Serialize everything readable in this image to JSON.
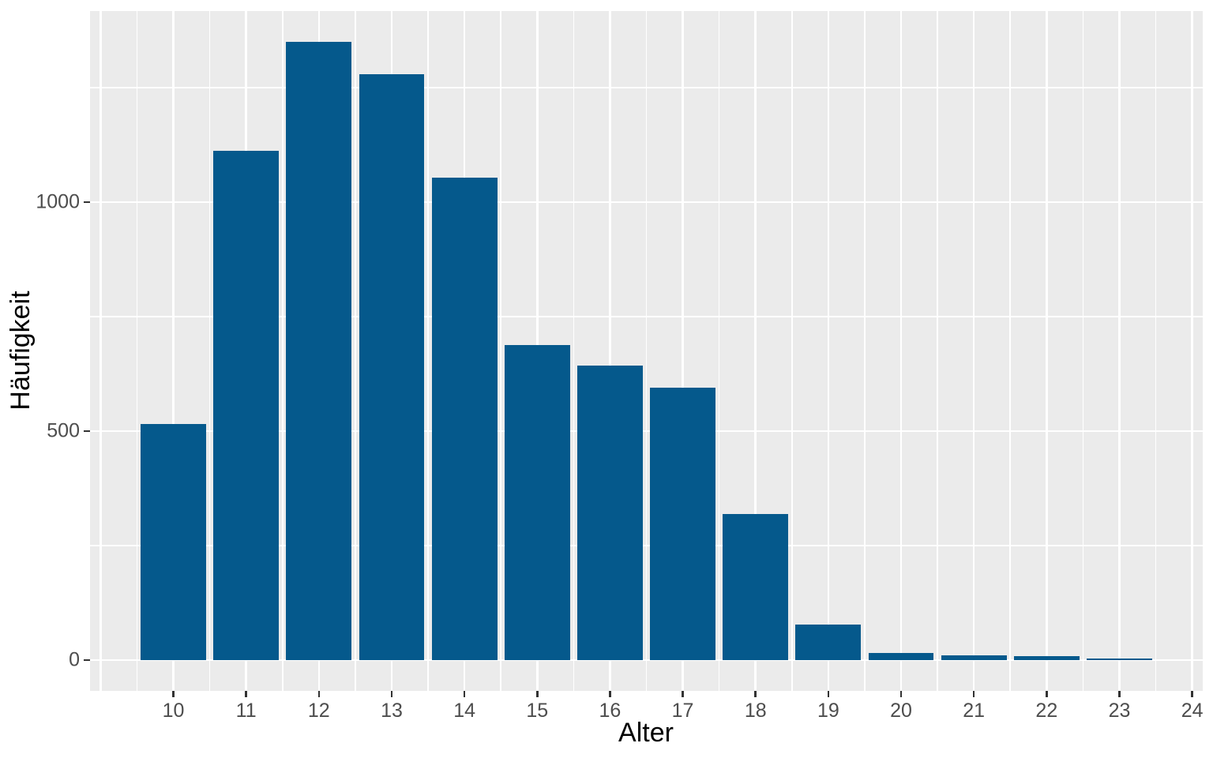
{
  "chart_data": {
    "type": "bar",
    "title": "",
    "xlabel": "Alter",
    "ylabel": "Häufigkeit",
    "categories": [
      10,
      11,
      12,
      13,
      14,
      15,
      16,
      17,
      18,
      19,
      20,
      21,
      22,
      23
    ],
    "values": [
      516,
      1113,
      1350,
      1280,
      1054,
      688,
      643,
      595,
      319,
      77,
      16,
      10,
      8,
      3
    ],
    "bar_width": 0.9,
    "x_ticks": [
      10,
      11,
      12,
      13,
      14,
      15,
      16,
      17,
      18,
      19,
      20,
      21,
      22,
      23,
      24
    ],
    "x_major_gridlines": [
      9,
      10,
      11,
      12,
      13,
      14,
      15,
      16,
      17,
      18,
      19,
      20,
      21,
      22,
      23,
      24
    ],
    "x_minor_gridlines": [
      9.5,
      10.5,
      11.5,
      12.5,
      13.5,
      14.5,
      15.5,
      16.5,
      17.5,
      18.5,
      19.5,
      20.5,
      21.5,
      22.5,
      23.5
    ],
    "y_ticks": [
      0,
      500,
      1000
    ],
    "y_major_gridlines": [
      0,
      500,
      1000
    ],
    "y_minor_gridlines": [
      250,
      750,
      1250
    ],
    "xlim": [
      8.855,
      24.145
    ],
    "ylim": [
      -67.5,
      1417.5
    ],
    "grid": "on",
    "legend_position": "none",
    "style": {
      "bar_color": "#05598C",
      "panel_bg": "#EBEBEB",
      "grid_color": "#FFFFFF",
      "tick_label_color": "#4D4D4D",
      "axis_title_color": "#000000",
      "tick_mark_color": "#333333",
      "page_bg": "#FFFFFF"
    }
  }
}
